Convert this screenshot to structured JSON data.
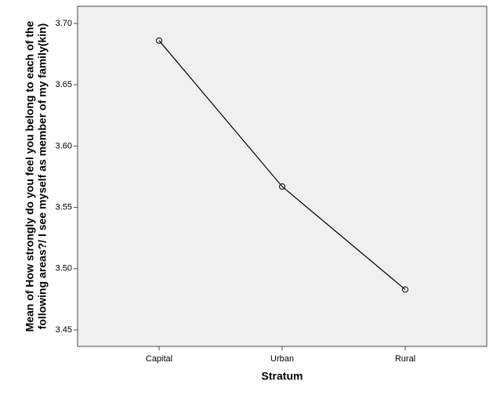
{
  "chart_data": {
    "type": "line",
    "xlabel": "Stratum",
    "ylabel": [
      "Mean of How strongly do you feel you belong to each of the",
      "following areas?/ I see myself as member of my family(kin)"
    ],
    "categories": [
      "Capital",
      "Urban",
      "Rural"
    ],
    "values": [
      3.686,
      3.567,
      3.483
    ],
    "color": "#000000",
    "ylim": [
      3.4366,
      3.714
    ],
    "yticks": [
      {
        "value": 3.7,
        "label": "3.70"
      },
      3.65,
      {
        "value": 3.6,
        "label": "3.60"
      },
      3.55,
      {
        "value": 3.5,
        "label": "3.50"
      },
      3.45
    ],
    "grid": false
  }
}
